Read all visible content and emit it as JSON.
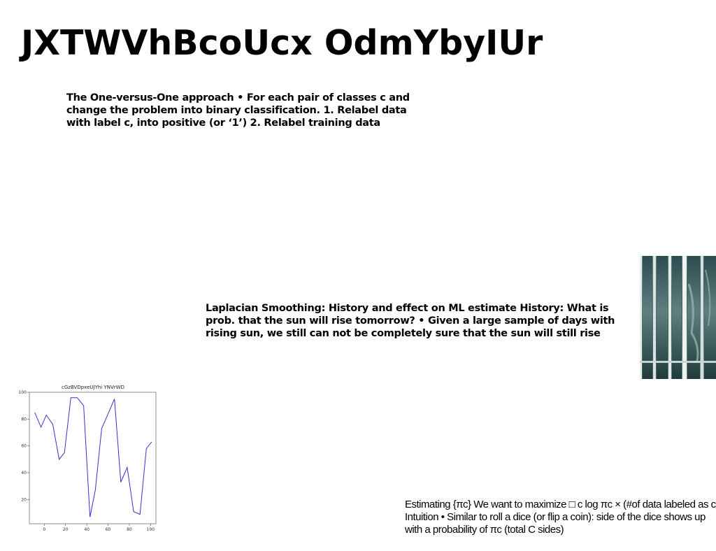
{
  "title": "JXTWVhBcoUcx OdmYbyIUr",
  "paragraphs": {
    "p1": "The One-versus-One approach • For each pair of classes c and change the problem into binary classification. 1. Relabel data with label c, into positive (or ‘1’) 2. Relabel training data",
    "p2": "Laplacian Smoothing: History and effect on ML estimate History: What is prob. that the sun will rise tomorrow? • Given a large sample of days with rising sun, we still can not be completely sure that the sun will still rise",
    "p3": "Estimating {πc} We want to maximize □ c log πc × (#of data labeled as c) Intuition • Similar to roll a dice (or flip a coin): side of the dice shows up with a probability of πc (total C sides)"
  },
  "photo": {
    "icon": "glass-windows-photo"
  },
  "chart_data": {
    "type": "line",
    "title": "cGzBVDpxeUJYhi YNVrWD",
    "xlabel": "",
    "ylabel": "",
    "xlim": [
      -14,
      105
    ],
    "ylim": [
      2,
      100
    ],
    "xticks": [
      0,
      20,
      40,
      60,
      80,
      100
    ],
    "yticks": [
      20,
      40,
      60,
      80,
      100
    ],
    "color": "#3333cc",
    "series": [
      {
        "x": [
          -9,
          -3,
          2,
          8,
          14,
          19,
          25,
          31,
          37,
          43,
          48,
          54,
          60,
          66,
          72,
          78,
          84,
          90,
          96,
          101
        ],
        "y": [
          85,
          74,
          83,
          76,
          50,
          55,
          96,
          96,
          90,
          7,
          27,
          73,
          84,
          95,
          33,
          44,
          11,
          9,
          58,
          63
        ]
      }
    ]
  }
}
